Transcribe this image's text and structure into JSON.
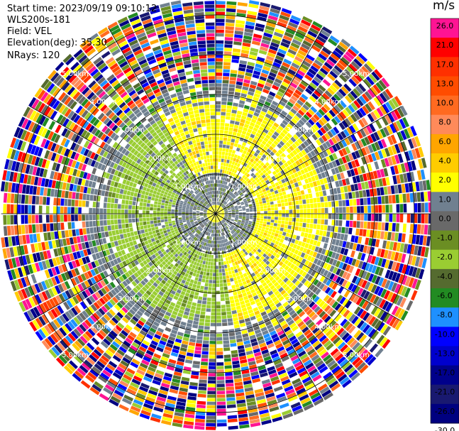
{
  "info": {
    "start_time": "Start time: 2023/09/19 09:10:12",
    "site": "WLS200s-181",
    "field": "Field: VEL",
    "elevation": "Elevation(deg): 35.30",
    "nrays": "NRays: 120"
  },
  "chart_data": {
    "type": "heatmap",
    "projection": "polar PPI (plan position indicator)",
    "field": "VEL",
    "nrays": 120,
    "elevation_deg": 35.3,
    "range_rings_km": [
      1.0,
      2.0,
      3.0,
      4.0,
      5.0
    ],
    "ring_labels": [
      "1.00km",
      "2.00km",
      "3.00km",
      "4.00km",
      "5.00km"
    ],
    "azimuth_spokes_deg": [
      0,
      30,
      60,
      90,
      120,
      150,
      180,
      210,
      240,
      270,
      300,
      330
    ],
    "max_range_km": 5.4,
    "velocity_pattern": {
      "near_zero_core_km": [
        0.0,
        1.0
      ],
      "positive_arc_azimuth_deg": [
        330,
        170
      ],
      "negative_arc_azimuth_deg": [
        170,
        330
      ],
      "band_km": [
        1.0,
        2.7
      ],
      "noise_beyond_km": 3.2
    },
    "colorbar": {
      "unit": "m/s",
      "tick_labels": [
        "26.0",
        "21.0",
        "17.0",
        "13.0",
        "10.0",
        "8.0",
        "6.0",
        "4.0",
        "2.0",
        "1.0",
        "0.0",
        "-1.0",
        "-2.0",
        "-4.0",
        "-6.0",
        "-8.0",
        "-10.0",
        "-13.0",
        "-17.0",
        "-21.0",
        "-26.0",
        "-30.0"
      ],
      "colors": [
        "#ff1493",
        "#ff0000",
        "#ff3000",
        "#ff4c00",
        "#ff6a20",
        "#ff8a5a",
        "#ffa500",
        "#ffcc00",
        "#ffff00",
        "#708090",
        "#696969",
        "#6b8e23",
        "#9acd32",
        "#556b2f",
        "#228b22",
        "#1e90ff",
        "#0000ff",
        "#0000cd",
        "#00008b",
        "#191970",
        "#000080"
      ]
    },
    "grid": true,
    "legend": "right"
  }
}
